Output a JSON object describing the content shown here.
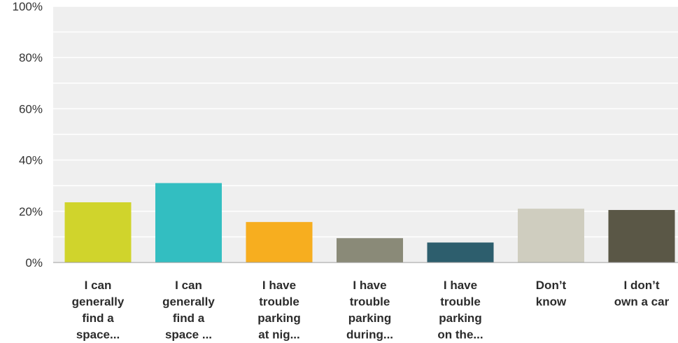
{
  "chart_data": {
    "type": "bar",
    "categories": [
      [
        "I can",
        "generally",
        "find a",
        "space..."
      ],
      [
        "I can",
        "generally",
        "find a",
        "space ..."
      ],
      [
        "I have",
        "trouble",
        "parking",
        "at nig..."
      ],
      [
        "I have",
        "trouble",
        "parking",
        "during..."
      ],
      [
        "I have",
        "trouble",
        "parking",
        "on the..."
      ],
      [
        "Don’t",
        "know"
      ],
      [
        "I don’t",
        "own a car"
      ]
    ],
    "values": [
      23.5,
      31,
      15.8,
      9.5,
      7.8,
      21,
      20.5
    ],
    "colors": [
      "#d0d42c",
      "#33bec1",
      "#f7ae1f",
      "#8a8a78",
      "#2d5e6d",
      "#cfcdbf",
      "#5a5746"
    ],
    "yticks": [
      "0%",
      "20%",
      "40%",
      "60%",
      "80%",
      "100%"
    ],
    "ylim": [
      0,
      100
    ],
    "grid": true,
    "plot_background": "#efefef",
    "grid_color": "#ffffff"
  }
}
